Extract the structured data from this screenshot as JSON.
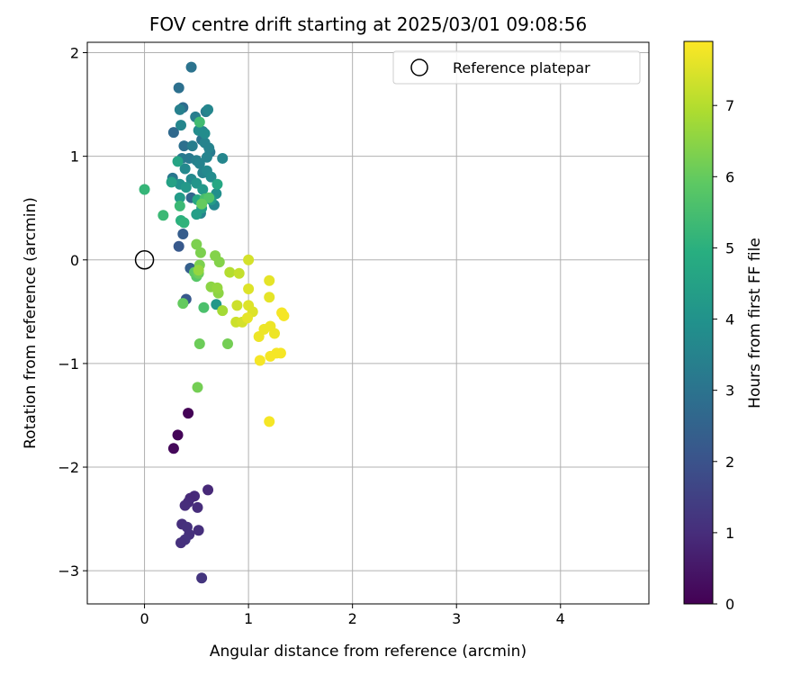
{
  "chart_data": {
    "type": "scatter",
    "title": "FOV centre drift starting at 2025/03/01 09:08:56",
    "xlabel": "Angular distance from reference (arcmin)",
    "ylabel": "Rotation from reference (arcmin)",
    "xlim": [
      -0.55,
      4.85
    ],
    "ylim": [
      -3.32,
      2.1
    ],
    "xticks": [
      0,
      1,
      2,
      3,
      4
    ],
    "yticks": [
      -3,
      -2,
      -1,
      0,
      1,
      2
    ],
    "grid": true,
    "legend": {
      "placement": "top-right",
      "entries": [
        {
          "label": "Reference platepar",
          "marker": "open-circle"
        }
      ]
    },
    "reference_point": {
      "x": 0,
      "y": 0
    },
    "colorbar": {
      "label": "Hours from first FF file",
      "colormap": "viridis",
      "range": [
        0,
        7.9
      ],
      "ticks": [
        0,
        1,
        2,
        3,
        4,
        5,
        6,
        7
      ]
    },
    "points": [
      {
        "x": 0.42,
        "y": -1.48,
        "h": 0.05
      },
      {
        "x": 0.32,
        "y": -1.69,
        "h": 0.1
      },
      {
        "x": 0.28,
        "y": -1.82,
        "h": 0.15
      },
      {
        "x": 0.61,
        "y": -2.22,
        "h": 0.9
      },
      {
        "x": 0.48,
        "y": -2.28,
        "h": 0.95
      },
      {
        "x": 0.44,
        "y": -2.3,
        "h": 0.9
      },
      {
        "x": 0.42,
        "y": -2.34,
        "h": 0.95
      },
      {
        "x": 0.39,
        "y": -2.37,
        "h": 1.0
      },
      {
        "x": 0.51,
        "y": -2.39,
        "h": 1.0
      },
      {
        "x": 0.36,
        "y": -2.55,
        "h": 1.05
      },
      {
        "x": 0.41,
        "y": -2.58,
        "h": 1.1
      },
      {
        "x": 0.52,
        "y": -2.61,
        "h": 1.05
      },
      {
        "x": 0.43,
        "y": -2.65,
        "h": 1.1
      },
      {
        "x": 0.39,
        "y": -2.7,
        "h": 1.15
      },
      {
        "x": 0.35,
        "y": -2.73,
        "h": 1.1
      },
      {
        "x": 0.55,
        "y": -3.07,
        "h": 1.2
      },
      {
        "x": 0.33,
        "y": 0.13,
        "h": 2.2
      },
      {
        "x": 0.37,
        "y": 0.25,
        "h": 2.3
      },
      {
        "x": 0.4,
        "y": -0.38,
        "h": 2.2
      },
      {
        "x": 0.44,
        "y": -0.08,
        "h": 2.4
      },
      {
        "x": 0.45,
        "y": 0.6,
        "h": 2.6
      },
      {
        "x": 0.28,
        "y": 1.23,
        "h": 2.7
      },
      {
        "x": 0.37,
        "y": 1.47,
        "h": 2.8
      },
      {
        "x": 0.33,
        "y": 1.66,
        "h": 2.9
      },
      {
        "x": 0.45,
        "y": 1.86,
        "h": 3.0
      },
      {
        "x": 0.38,
        "y": 1.1,
        "h": 2.9
      },
      {
        "x": 0.55,
        "y": 1.16,
        "h": 3.0
      },
      {
        "x": 0.27,
        "y": 0.79,
        "h": 3.1
      },
      {
        "x": 0.36,
        "y": 0.98,
        "h": 3.2
      },
      {
        "x": 0.43,
        "y": 0.98,
        "h": 3.2
      },
      {
        "x": 0.63,
        "y": 1.04,
        "h": 3.2
      },
      {
        "x": 0.59,
        "y": 1.43,
        "h": 3.3
      },
      {
        "x": 0.49,
        "y": 1.38,
        "h": 3.3
      },
      {
        "x": 0.46,
        "y": 1.1,
        "h": 3.3
      },
      {
        "x": 0.56,
        "y": 1.24,
        "h": 3.4
      },
      {
        "x": 0.34,
        "y": 1.45,
        "h": 3.4
      },
      {
        "x": 0.5,
        "y": 0.96,
        "h": 3.4
      },
      {
        "x": 0.58,
        "y": 1.13,
        "h": 3.5
      },
      {
        "x": 0.62,
        "y": 1.08,
        "h": 3.5
      },
      {
        "x": 0.6,
        "y": 0.99,
        "h": 3.5
      },
      {
        "x": 0.53,
        "y": 0.93,
        "h": 3.5
      },
      {
        "x": 0.56,
        "y": 0.84,
        "h": 3.5
      },
      {
        "x": 0.75,
        "y": 0.98,
        "h": 3.6
      },
      {
        "x": 0.67,
        "y": 0.53,
        "h": 3.6
      },
      {
        "x": 0.54,
        "y": 0.45,
        "h": 3.5
      },
      {
        "x": 0.61,
        "y": 1.45,
        "h": 3.6
      },
      {
        "x": 0.35,
        "y": 1.3,
        "h": 3.6
      },
      {
        "x": 0.39,
        "y": 0.88,
        "h": 3.7
      },
      {
        "x": 0.45,
        "y": 0.78,
        "h": 3.7
      },
      {
        "x": 0.6,
        "y": 0.86,
        "h": 3.7
      },
      {
        "x": 0.58,
        "y": 1.22,
        "h": 3.8
      },
      {
        "x": 0.52,
        "y": 1.25,
        "h": 3.8
      },
      {
        "x": 0.64,
        "y": 0.8,
        "h": 3.8
      },
      {
        "x": 0.69,
        "y": 0.64,
        "h": 3.9
      },
      {
        "x": 0.69,
        "y": -0.43,
        "h": 4.2
      },
      {
        "x": 0.34,
        "y": 0.73,
        "h": 4.0
      },
      {
        "x": 0.5,
        "y": 0.74,
        "h": 4.1
      },
      {
        "x": 0.4,
        "y": 0.7,
        "h": 4.2
      },
      {
        "x": 0.56,
        "y": 0.68,
        "h": 4.2
      },
      {
        "x": 0.64,
        "y": 0.58,
        "h": 4.3
      },
      {
        "x": 0.34,
        "y": 0.6,
        "h": 4.3
      },
      {
        "x": 0.55,
        "y": 0.5,
        "h": 4.4
      },
      {
        "x": 0.5,
        "y": 0.44,
        "h": 4.4
      },
      {
        "x": 0.26,
        "y": 0.75,
        "h": 4.5
      },
      {
        "x": 0.32,
        "y": 0.95,
        "h": 4.6
      },
      {
        "x": 0.51,
        "y": 0.58,
        "h": 4.7
      },
      {
        "x": 0.7,
        "y": 0.73,
        "h": 4.7
      },
      {
        "x": 0.35,
        "y": 0.38,
        "h": 5.0
      },
      {
        "x": 0.38,
        "y": 0.36,
        "h": 5.1
      },
      {
        "x": 0.0,
        "y": 0.68,
        "h": 5.2
      },
      {
        "x": 0.18,
        "y": 0.43,
        "h": 5.3
      },
      {
        "x": 0.34,
        "y": 0.52,
        "h": 5.3
      },
      {
        "x": 0.53,
        "y": 1.33,
        "h": 5.4
      },
      {
        "x": 0.58,
        "y": 0.59,
        "h": 5.5
      },
      {
        "x": 0.57,
        "y": -0.46,
        "h": 5.6
      },
      {
        "x": 0.62,
        "y": 0.6,
        "h": 5.7
      },
      {
        "x": 0.5,
        "y": -0.16,
        "h": 5.8
      },
      {
        "x": 0.48,
        "y": -0.12,
        "h": 5.9
      },
      {
        "x": 0.37,
        "y": -0.42,
        "h": 6.0
      },
      {
        "x": 0.55,
        "y": 0.54,
        "h": 6.0
      },
      {
        "x": 0.52,
        "y": -0.13,
        "h": 6.1
      },
      {
        "x": 0.53,
        "y": -0.81,
        "h": 6.1
      },
      {
        "x": 0.8,
        "y": -0.81,
        "h": 6.2
      },
      {
        "x": 0.51,
        "y": -1.23,
        "h": 6.2
      },
      {
        "x": 0.5,
        "y": 0.15,
        "h": 6.3
      },
      {
        "x": 0.54,
        "y": 0.07,
        "h": 6.3
      },
      {
        "x": 0.53,
        "y": -0.05,
        "h": 6.3
      },
      {
        "x": 0.68,
        "y": 0.04,
        "h": 6.4
      },
      {
        "x": 0.72,
        "y": -0.02,
        "h": 6.4
      },
      {
        "x": 0.64,
        "y": -0.26,
        "h": 6.5
      },
      {
        "x": 0.71,
        "y": -0.32,
        "h": 6.5
      },
      {
        "x": 0.7,
        "y": -0.27,
        "h": 6.6
      },
      {
        "x": 0.52,
        "y": -0.1,
        "h": 6.6
      },
      {
        "x": 0.75,
        "y": -0.49,
        "h": 6.8
      },
      {
        "x": 0.82,
        "y": -0.12,
        "h": 7.0
      },
      {
        "x": 0.91,
        "y": -0.13,
        "h": 7.2
      },
      {
        "x": 0.89,
        "y": -0.44,
        "h": 7.3
      },
      {
        "x": 0.88,
        "y": -0.6,
        "h": 7.3
      },
      {
        "x": 0.94,
        "y": -0.6,
        "h": 7.4
      },
      {
        "x": 1.0,
        "y": 0.0,
        "h": 7.4
      },
      {
        "x": 1.0,
        "y": -0.28,
        "h": 7.5
      },
      {
        "x": 1.0,
        "y": -0.44,
        "h": 7.5
      },
      {
        "x": 1.04,
        "y": -0.5,
        "h": 7.5
      },
      {
        "x": 0.99,
        "y": -0.56,
        "h": 7.6
      },
      {
        "x": 1.2,
        "y": -0.2,
        "h": 7.6
      },
      {
        "x": 1.2,
        "y": -0.36,
        "h": 7.6
      },
      {
        "x": 1.1,
        "y": -0.74,
        "h": 7.7
      },
      {
        "x": 1.15,
        "y": -0.67,
        "h": 7.7
      },
      {
        "x": 1.21,
        "y": -0.64,
        "h": 7.7
      },
      {
        "x": 1.25,
        "y": -0.71,
        "h": 7.7
      },
      {
        "x": 1.32,
        "y": -0.51,
        "h": 7.8
      },
      {
        "x": 1.34,
        "y": -0.54,
        "h": 7.8
      },
      {
        "x": 1.27,
        "y": -0.9,
        "h": 7.8
      },
      {
        "x": 1.31,
        "y": -0.9,
        "h": 7.8
      },
      {
        "x": 1.21,
        "y": -0.93,
        "h": 7.8
      },
      {
        "x": 1.11,
        "y": -0.97,
        "h": 7.8
      },
      {
        "x": 1.2,
        "y": -1.56,
        "h": 7.8
      }
    ]
  }
}
